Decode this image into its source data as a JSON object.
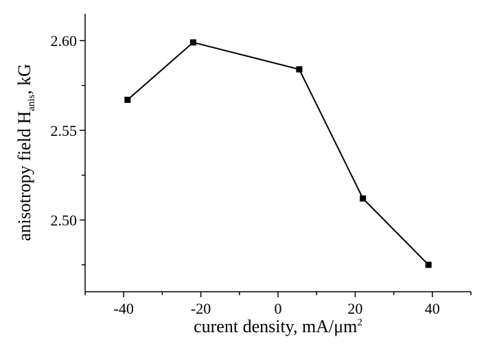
{
  "chart_data": {
    "type": "line",
    "xlabel": "curent density, mA/μm",
    "xlabel_superscript": "2",
    "ylabel_prefix": "anisotropy field H",
    "ylabel_subscript": "anis",
    "ylabel_suffix": ", kG",
    "xlim": [
      -50,
      50
    ],
    "ylim": [
      2.46,
      2.615
    ],
    "x_ticks": [
      -40,
      -20,
      0,
      20,
      40
    ],
    "x_tick_labels": [
      "-40",
      "-20",
      "0",
      "20",
      "40"
    ],
    "y_ticks": [
      2.5,
      2.55,
      2.6
    ],
    "y_tick_labels": [
      "2.50",
      "2.55",
      "2.60"
    ],
    "grid": false,
    "legend": "none",
    "series": [
      {
        "x": [
          -39,
          -22,
          5.5,
          22,
          39
        ],
        "y": [
          2.567,
          2.599,
          2.584,
          2.512,
          2.475
        ],
        "marker": "square",
        "color": "#000000"
      }
    ]
  }
}
